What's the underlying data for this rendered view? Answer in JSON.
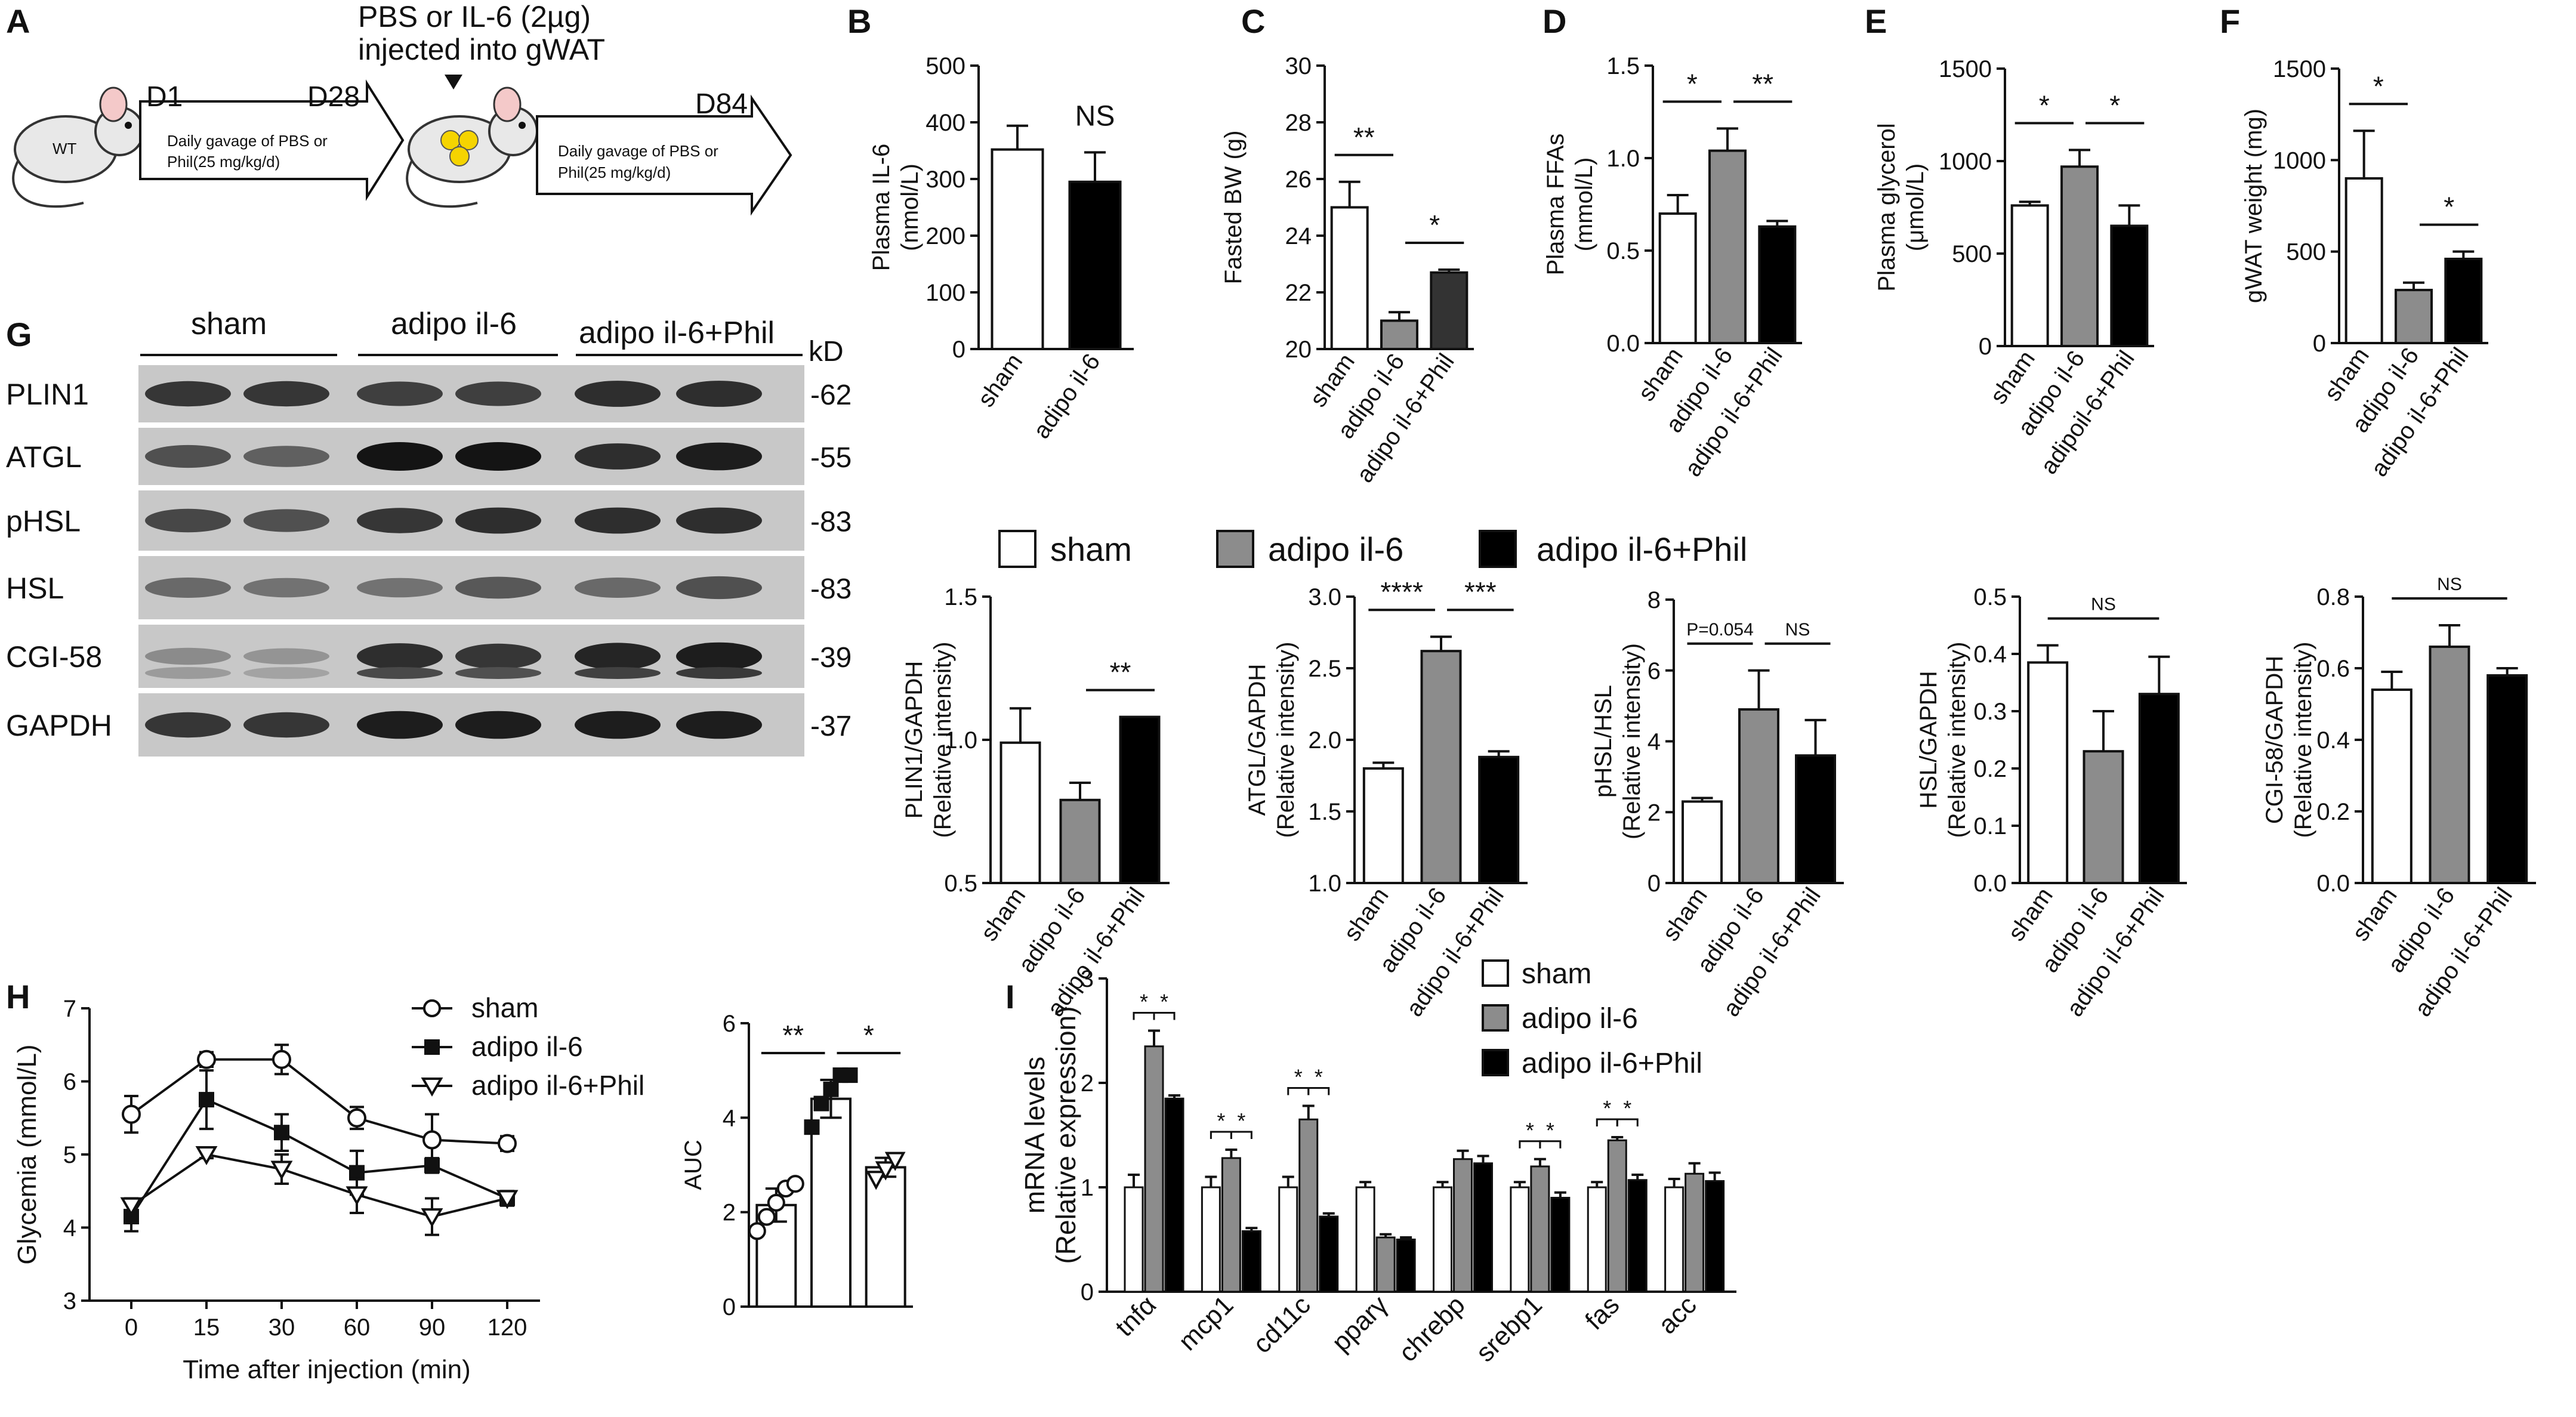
{
  "colors": {
    "sham": "#ffffff",
    "adipo": "#8c8c8c",
    "phil": "#000000",
    "outline": "#111111"
  },
  "panel_a": {
    "letter": "A",
    "d1": "D1",
    "d28": "D28",
    "d84": "D84",
    "top_line1": "PBS or IL-6 (2µg)",
    "top_line2": "injected into gWAT",
    "box1_line1": "Daily gavage of PBS or",
    "box1_line2": "Phil(25 mg/kg/d)",
    "box2_line1": "Daily gavage of PBS or",
    "box2_line2": "Phil(25 mg/kg/d)",
    "mouse_label": "WT"
  },
  "panel_g": {
    "letter": "G",
    "groups": [
      "sham",
      "adipo il-6",
      "adipo il-6+Phil"
    ],
    "kd_label": "kD",
    "rows": [
      {
        "name": "PLIN1",
        "kd": "-62"
      },
      {
        "name": "ATGL",
        "kd": "-55"
      },
      {
        "name": "pHSL",
        "kd": "-83"
      },
      {
        "name": "HSL",
        "kd": "-83"
      },
      {
        "name": "CGI-58",
        "kd": "-39"
      },
      {
        "name": "GAPDH",
        "kd": "-37"
      }
    ]
  },
  "legend_mid": {
    "sham": "sham",
    "adipo": "adipo il-6",
    "phil": "adipo il-6+Phil"
  },
  "legend_i": {
    "sham": "sham",
    "adipo": "adipo il-6",
    "phil": "adipo il-6+Phil"
  },
  "chart_data": [
    {
      "id": "B",
      "type": "bar",
      "letter": "B",
      "ylabel": [
        "Plasma IL-6",
        "(nmol/L)"
      ],
      "categories": [
        "sham",
        "adipo il-6"
      ],
      "values": [
        352,
        295
      ],
      "errors": [
        42,
        52
      ],
      "ylim": [
        0,
        500
      ],
      "yticks": [
        0,
        100,
        200,
        300,
        400,
        500
      ],
      "colors": [
        "#ffffff",
        "#000000"
      ],
      "annotations": [
        {
          "text": "NS",
          "from": 1,
          "to": 1
        }
      ]
    },
    {
      "id": "C",
      "type": "bar",
      "letter": "C",
      "ylabel": [
        "Fasted BW (g)"
      ],
      "categories": [
        "sham",
        "adipo il-6",
        "adipo il-6+Phil"
      ],
      "values": [
        25.0,
        21.0,
        22.7
      ],
      "errors": [
        0.9,
        0.3,
        0.1
      ],
      "ylim": [
        20,
        30
      ],
      "yticks": [
        20,
        22,
        24,
        26,
        28,
        30
      ],
      "colors": [
        "#ffffff",
        "#8c8c8c",
        "#333333"
      ],
      "annotations": [
        {
          "text": "**",
          "from": 0,
          "to": 1
        },
        {
          "text": "*",
          "from": 1,
          "to": 2
        }
      ]
    },
    {
      "id": "D",
      "type": "bar",
      "letter": "D",
      "ylabel": [
        "Plasma FFAs",
        "(mmol/L)"
      ],
      "categories": [
        "sham",
        "adipo il-6",
        "adipo il-6+Phil"
      ],
      "values": [
        0.7,
        1.04,
        0.63
      ],
      "errors": [
        0.1,
        0.12,
        0.03
      ],
      "ylim": [
        0,
        1.5
      ],
      "yticks": [
        0.0,
        0.5,
        1.0,
        1.5
      ],
      "colors": [
        "#ffffff",
        "#8c8c8c",
        "#000000"
      ],
      "annotations": [
        {
          "text": "*",
          "from": 0,
          "to": 1
        },
        {
          "text": "**",
          "from": 1,
          "to": 2
        }
      ]
    },
    {
      "id": "E",
      "type": "bar",
      "letter": "E",
      "ylabel": [
        "Plasma glycerol",
        "(μmol/L)"
      ],
      "categories": [
        "sham",
        "adipo il-6",
        "adipoil-6+Phil"
      ],
      "values": [
        760,
        970,
        650
      ],
      "errors": [
        20,
        90,
        110
      ],
      "ylim": [
        0,
        1500
      ],
      "yticks": [
        0,
        500,
        1000,
        1500
      ],
      "colors": [
        "#ffffff",
        "#8c8c8c",
        "#000000"
      ],
      "annotations": [
        {
          "text": "*",
          "from": 0,
          "to": 1
        },
        {
          "text": "*",
          "from": 1,
          "to": 2
        }
      ]
    },
    {
      "id": "F",
      "type": "bar",
      "letter": "F",
      "ylabel": [
        "gWAT weight (mg)"
      ],
      "categories": [
        "sham",
        "adipo il-6",
        "adipo il-6+Phil"
      ],
      "values": [
        900,
        290,
        460
      ],
      "errors": [
        260,
        40,
        40
      ],
      "ylim": [
        0,
        1500
      ],
      "yticks": [
        0,
        500,
        1000,
        1500
      ],
      "colors": [
        "#ffffff",
        "#8c8c8c",
        "#000000"
      ],
      "annotations": [
        {
          "text": "*",
          "from": 0,
          "to": 1
        },
        {
          "text": "*",
          "from": 1,
          "to": 2
        }
      ]
    },
    {
      "id": "G1",
      "type": "bar",
      "ylabel": [
        "PLIN1/GAPDH",
        "(Relative intensity)"
      ],
      "categories": [
        "sham",
        "adipo il-6",
        "adipo il-6+Phil"
      ],
      "values": [
        0.99,
        0.79,
        1.08
      ],
      "errors": [
        0.12,
        0.06,
        0.0
      ],
      "ylim": [
        0.5,
        1.5
      ],
      "yticks": [
        0.5,
        1.0,
        1.5
      ],
      "colors": [
        "#ffffff",
        "#8c8c8c",
        "#000000"
      ],
      "annotations": [
        {
          "text": "**",
          "from": 1,
          "to": 2
        }
      ]
    },
    {
      "id": "G2",
      "type": "bar",
      "ylabel": [
        "ATGL/GAPDH",
        "(Relative intensity)"
      ],
      "categories": [
        "sham",
        "adipo il-6",
        "adipo il-6+Phil"
      ],
      "values": [
        1.8,
        2.62,
        1.88
      ],
      "errors": [
        0.04,
        0.1,
        0.04
      ],
      "ylim": [
        1.0,
        3.0
      ],
      "yticks": [
        1.0,
        1.5,
        2.0,
        2.5,
        3.0
      ],
      "colors": [
        "#ffffff",
        "#8c8c8c",
        "#000000"
      ],
      "annotations": [
        {
          "text": "****",
          "from": 0,
          "to": 1
        },
        {
          "text": "***",
          "from": 1,
          "to": 2
        }
      ]
    },
    {
      "id": "G3",
      "type": "bar",
      "ylabel": [
        "pHSL/HSL",
        "(Relative intensity)"
      ],
      "categories": [
        "sham",
        "adipo il-6",
        "adipo il-6+Phil"
      ],
      "values": [
        2.3,
        4.9,
        3.6
      ],
      "errors": [
        0.1,
        1.1,
        1.0
      ],
      "ylim": [
        0,
        8
      ],
      "yticks": [
        0,
        2,
        4,
        6,
        8
      ],
      "colors": [
        "#ffffff",
        "#8c8c8c",
        "#000000"
      ],
      "annotations": [
        {
          "text": "P=0.054",
          "from": 0,
          "to": 1,
          "small": true
        },
        {
          "text": "NS",
          "from": 1,
          "to": 2,
          "small": true
        }
      ]
    },
    {
      "id": "G4",
      "type": "bar",
      "ylabel": [
        "HSL/GAPDH",
        "(Relative intensity)"
      ],
      "categories": [
        "sham",
        "adipo il-6",
        "adipo il-6+Phil"
      ],
      "values": [
        0.385,
        0.23,
        0.33
      ],
      "errors": [
        0.03,
        0.07,
        0.065
      ],
      "ylim": [
        0,
        0.5
      ],
      "yticks": [
        0.0,
        0.1,
        0.2,
        0.3,
        0.4,
        0.5
      ],
      "colors": [
        "#ffffff",
        "#8c8c8c",
        "#000000"
      ],
      "annotations": [
        {
          "text": "NS",
          "from": 0,
          "to": 2,
          "small": true
        }
      ]
    },
    {
      "id": "G5",
      "type": "bar",
      "ylabel": [
        "CGI-58/GAPDH",
        "(Relative intensity)"
      ],
      "categories": [
        "sham",
        "adipo il-6",
        "adipo il-6+Phil"
      ],
      "values": [
        0.54,
        0.66,
        0.58
      ],
      "errors": [
        0.05,
        0.06,
        0.02
      ],
      "ylim": [
        0,
        0.8
      ],
      "yticks": [
        0.0,
        0.2,
        0.4,
        0.6,
        0.8
      ],
      "colors": [
        "#ffffff",
        "#8c8c8c",
        "#000000"
      ],
      "annotations": [
        {
          "text": "NS",
          "from": 0,
          "to": 2,
          "small": true
        }
      ]
    },
    {
      "id": "H1",
      "type": "line",
      "letter": "H",
      "xlabel": "Time after injection (min)",
      "ylabel": [
        "Glycemia (mmol/L)"
      ],
      "x": [
        0,
        15,
        30,
        60,
        90,
        120
      ],
      "xticks": [
        "0",
        "15",
        "30",
        "60",
        "90",
        "120"
      ],
      "ylim": [
        3,
        7
      ],
      "yticks": [
        3,
        4,
        5,
        6,
        7
      ],
      "series": [
        {
          "name": "sham",
          "marker": "circle",
          "values": [
            5.55,
            6.3,
            6.3,
            5.5,
            5.2,
            5.15
          ],
          "errors": [
            0.25,
            0.1,
            0.2,
            0.15,
            0.35,
            0.1
          ]
        },
        {
          "name": "adipo il-6",
          "marker": "square",
          "values": [
            4.15,
            5.75,
            5.3,
            4.75,
            4.85,
            4.4
          ],
          "errors": [
            0.2,
            0.4,
            0.25,
            0.3,
            0.1,
            0.1
          ]
        },
        {
          "name": "adipo il-6+Phil",
          "marker": "triangle-down",
          "values": [
            4.3,
            5.0,
            4.8,
            4.45,
            4.15,
            4.4
          ],
          "errors": [
            0.1,
            0.05,
            0.2,
            0.25,
            0.25,
            0.05
          ]
        }
      ]
    },
    {
      "id": "H2",
      "type": "bar",
      "ylabel": [
        "AUC"
      ],
      "categories": [
        "sham",
        "adipo il-6",
        "adipo il-6+Phil"
      ],
      "values": [
        2.15,
        4.4,
        2.95
      ],
      "errors": [
        0.35,
        0.4,
        0.2
      ],
      "ylim": [
        0,
        6
      ],
      "yticks": [
        0,
        2,
        4,
        6
      ],
      "colors": [
        "#ffffff",
        "#ffffff",
        "#ffffff"
      ],
      "points": [
        [
          1.6,
          1.9,
          2.2,
          2.5,
          2.6
        ],
        [
          3.8,
          4.3,
          4.6,
          4.9,
          4.9
        ],
        [
          2.7,
          2.9,
          3.1
        ]
      ],
      "markers": [
        "circle",
        "square",
        "triangle-down"
      ],
      "annotations": [
        {
          "text": "**",
          "from": 0,
          "to": 1
        },
        {
          "text": "*",
          "from": 1,
          "to": 2
        }
      ]
    },
    {
      "id": "I",
      "type": "bar",
      "letter": "I",
      "ylabel": [
        "mRNA levels",
        "(Relative expression)"
      ],
      "categories": [
        "tnfα",
        "mcp1",
        "cd11c",
        "pparγ",
        "chrebp",
        "srebp1",
        "fas",
        "acc"
      ],
      "series": [
        {
          "name": "sham",
          "values": [
            1.0,
            1.0,
            1.0,
            1.0,
            1.0,
            1.0,
            1.0,
            1.0
          ],
          "errors": [
            0.12,
            0.1,
            0.1,
            0.05,
            0.05,
            0.05,
            0.05,
            0.08
          ]
        },
        {
          "name": "adipo il-6",
          "values": [
            2.35,
            1.28,
            1.65,
            0.52,
            1.27,
            1.2,
            1.45,
            1.13
          ],
          "errors": [
            0.15,
            0.08,
            0.13,
            0.03,
            0.08,
            0.07,
            0.03,
            0.1
          ]
        },
        {
          "name": "adipo il-6+Phil",
          "values": [
            1.85,
            0.58,
            0.72,
            0.5,
            1.23,
            0.9,
            1.07,
            1.06
          ],
          "errors": [
            0.03,
            0.03,
            0.03,
            0.02,
            0.07,
            0.05,
            0.05,
            0.08
          ]
        }
      ],
      "ylim": [
        0,
        3
      ],
      "yticks": [
        0,
        1,
        2,
        3
      ],
      "annotations_groups": [
        0,
        1,
        2,
        5,
        6
      ],
      "annotation_text": "*"
    }
  ]
}
